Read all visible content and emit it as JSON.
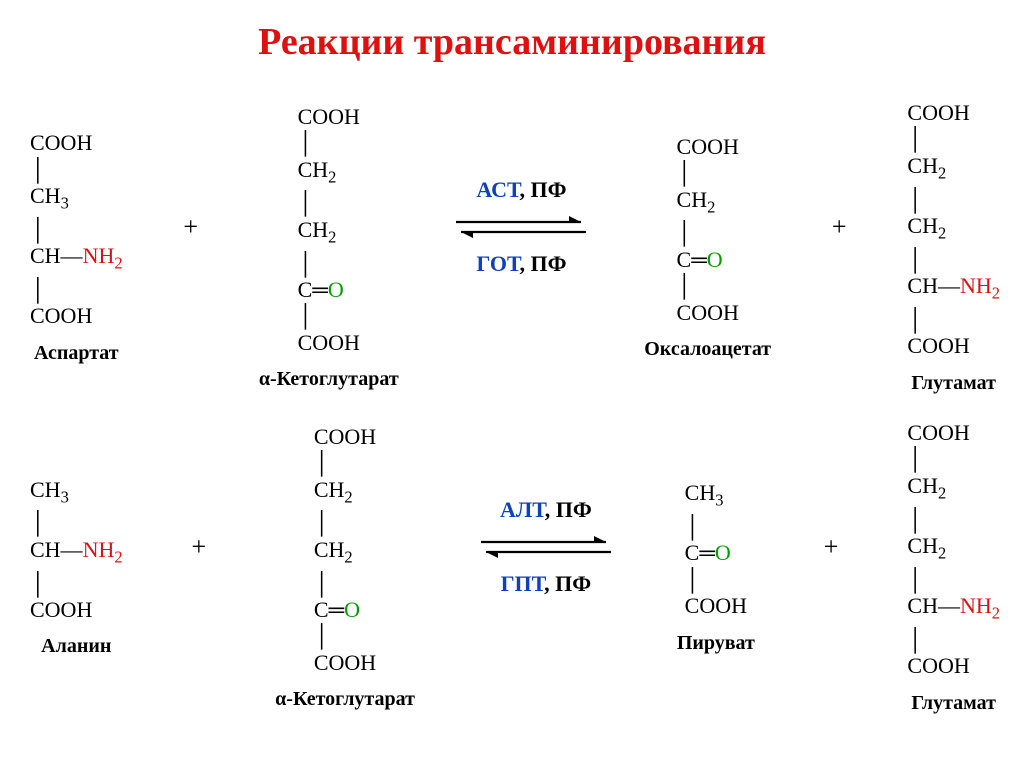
{
  "title": {
    "text": "Реакции трансаминирования",
    "color": "#e01010",
    "fontsize": 38
  },
  "colors": {
    "black": "#000000",
    "nh2": "#e01010",
    "oxygen": "#00a000",
    "enzyme_blue": "#1040c0",
    "arrow": "#000000",
    "background": "#ffffff"
  },
  "fonts": {
    "label_size": 20,
    "formula_size": 22,
    "enzyme_size": 22
  },
  "reactions": [
    {
      "id": "ast",
      "enzymes_top": [
        {
          "text": "АСТ",
          "color": "#1040c0"
        },
        {
          "text": ", ПФ",
          "color": "#000000"
        }
      ],
      "enzymes_bottom": [
        {
          "text": "ГОТ",
          "color": "#1040c0"
        },
        {
          "text": ", ПФ",
          "color": "#000000"
        }
      ],
      "left": [
        {
          "name": "Аспартат",
          "lines": [
            [
              {
                "t": "COOH"
              }
            ],
            [
              {
                "t": "│",
                "cls": "bond"
              }
            ],
            [
              {
                "t": "CH"
              },
              {
                "t": "3",
                "sub": true
              }
            ],
            [
              {
                "t": "│",
                "cls": "bond"
              }
            ],
            [
              {
                "t": "CH—"
              },
              {
                "t": "NH",
                "color": "#e01010"
              },
              {
                "t": "2",
                "sub": true,
                "color": "#e01010"
              }
            ],
            [
              {
                "t": "│",
                "cls": "bond"
              }
            ],
            [
              {
                "t": "COOH"
              }
            ]
          ]
        },
        {
          "name": "α-Кетоглутарат",
          "lines": [
            [
              {
                "t": "COOH"
              }
            ],
            [
              {
                "t": "│",
                "cls": "bond"
              }
            ],
            [
              {
                "t": "CH"
              },
              {
                "t": "2",
                "sub": true
              }
            ],
            [
              {
                "t": "│",
                "cls": "bond"
              }
            ],
            [
              {
                "t": "CH"
              },
              {
                "t": "2",
                "sub": true
              }
            ],
            [
              {
                "t": "│",
                "cls": "bond"
              }
            ],
            [
              {
                "t": "C═"
              },
              {
                "t": "O",
                "color": "#00a000"
              }
            ],
            [
              {
                "t": "│",
                "cls": "bond"
              }
            ],
            [
              {
                "t": "COOH"
              }
            ]
          ]
        }
      ],
      "right": [
        {
          "name": "Оксалоацетат",
          "lines": [
            [
              {
                "t": "COOH"
              }
            ],
            [
              {
                "t": "│",
                "cls": "bond"
              }
            ],
            [
              {
                "t": "CH"
              },
              {
                "t": "2",
                "sub": true
              }
            ],
            [
              {
                "t": "│",
                "cls": "bond"
              }
            ],
            [
              {
                "t": "C═"
              },
              {
                "t": "O",
                "color": "#00a000"
              }
            ],
            [
              {
                "t": "│",
                "cls": "bond"
              }
            ],
            [
              {
                "t": "COOH"
              }
            ]
          ]
        },
        {
          "name": "Глутамат",
          "lines": [
            [
              {
                "t": "COOH"
              }
            ],
            [
              {
                "t": "│",
                "cls": "bond"
              }
            ],
            [
              {
                "t": "CH"
              },
              {
                "t": "2",
                "sub": true
              }
            ],
            [
              {
                "t": "│",
                "cls": "bond"
              }
            ],
            [
              {
                "t": "CH"
              },
              {
                "t": "2",
                "sub": true
              }
            ],
            [
              {
                "t": "│",
                "cls": "bond"
              }
            ],
            [
              {
                "t": "CH—"
              },
              {
                "t": "NH",
                "color": "#e01010"
              },
              {
                "t": "2",
                "sub": true,
                "color": "#e01010"
              }
            ],
            [
              {
                "t": "│",
                "cls": "bond"
              }
            ],
            [
              {
                "t": "COOH"
              }
            ]
          ]
        }
      ]
    },
    {
      "id": "alt",
      "enzymes_top": [
        {
          "text": "АЛТ",
          "color": "#1040c0"
        },
        {
          "text": ", ПФ",
          "color": "#000000"
        }
      ],
      "enzymes_bottom": [
        {
          "text": "ГПТ",
          "color": "#1040c0"
        },
        {
          "text": ", ПФ",
          "color": "#000000"
        }
      ],
      "left": [
        {
          "name": "Аланин",
          "lines": [
            [
              {
                "t": "CH"
              },
              {
                "t": "3",
                "sub": true
              }
            ],
            [
              {
                "t": "│",
                "cls": "bond"
              }
            ],
            [
              {
                "t": "CH—"
              },
              {
                "t": "NH",
                "color": "#e01010"
              },
              {
                "t": "2",
                "sub": true,
                "color": "#e01010"
              }
            ],
            [
              {
                "t": "│",
                "cls": "bond"
              }
            ],
            [
              {
                "t": "COOH"
              }
            ]
          ]
        },
        {
          "name": "α-Кетоглутарат",
          "lines": [
            [
              {
                "t": "COOH"
              }
            ],
            [
              {
                "t": "│",
                "cls": "bond"
              }
            ],
            [
              {
                "t": "CH"
              },
              {
                "t": "2",
                "sub": true
              }
            ],
            [
              {
                "t": "│",
                "cls": "bond"
              }
            ],
            [
              {
                "t": "CH"
              },
              {
                "t": "2",
                "sub": true
              }
            ],
            [
              {
                "t": "│",
                "cls": "bond"
              }
            ],
            [
              {
                "t": "C═"
              },
              {
                "t": "O",
                "color": "#00a000"
              }
            ],
            [
              {
                "t": "│",
                "cls": "bond"
              }
            ],
            [
              {
                "t": "COOH"
              }
            ]
          ]
        }
      ],
      "right": [
        {
          "name": "Пируват",
          "lines": [
            [
              {
                "t": "CH"
              },
              {
                "t": "3",
                "sub": true
              }
            ],
            [
              {
                "t": "│",
                "cls": "bond"
              }
            ],
            [
              {
                "t": "C═"
              },
              {
                "t": "O",
                "color": "#00a000"
              }
            ],
            [
              {
                "t": "│",
                "cls": "bond"
              }
            ],
            [
              {
                "t": "COOH"
              }
            ]
          ]
        },
        {
          "name": "Глутамат",
          "lines": [
            [
              {
                "t": "COOH"
              }
            ],
            [
              {
                "t": "│",
                "cls": "bond"
              }
            ],
            [
              {
                "t": "CH"
              },
              {
                "t": "2",
                "sub": true
              }
            ],
            [
              {
                "t": "│",
                "cls": "bond"
              }
            ],
            [
              {
                "t": "CH"
              },
              {
                "t": "2",
                "sub": true
              }
            ],
            [
              {
                "t": "│",
                "cls": "bond"
              }
            ],
            [
              {
                "t": "CH—"
              },
              {
                "t": "NH",
                "color": "#e01010"
              },
              {
                "t": "2",
                "sub": true,
                "color": "#e01010"
              }
            ],
            [
              {
                "t": "│",
                "cls": "bond"
              }
            ],
            [
              {
                "t": "COOH"
              }
            ]
          ]
        }
      ]
    }
  ]
}
